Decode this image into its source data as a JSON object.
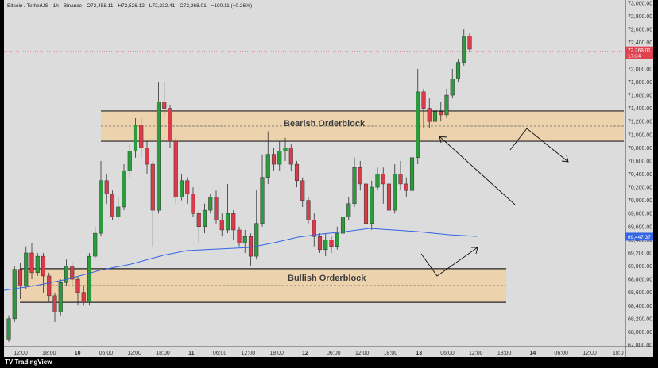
{
  "legend": {
    "symbol": "Bitcoin / TetherUS · 1h · Binance",
    "open": "O72,458.11",
    "high": "H72,526.12",
    "low": "L72,232.41",
    "close": "C72,268.01",
    "change": "−190.11 (−0.26%)"
  },
  "price_axis": {
    "labels": [
      "73,000.00",
      "72,800.00",
      "72,600.00",
      "72,400.00",
      "72,200.00",
      "72,000.00",
      "71,800.00",
      "71,600.00",
      "71,400.00",
      "71,200.00",
      "71,000.00",
      "70,800.00",
      "70,600.00",
      "70,400.00",
      "70,200.00",
      "70,000.00",
      "69,800.00",
      "69,600.00",
      "69,400.00",
      "69,200.00",
      "69,000.00",
      "68,800.00",
      "68,600.00",
      "68,400.00",
      "68,200.00",
      "68,000.00",
      "67,800.00"
    ],
    "current_price": "72,268.01",
    "countdown": "17:34",
    "ma_price": "69,447.37"
  },
  "time_axis": {
    "labels": [
      "12:00",
      "18:00",
      "10",
      "06:00",
      "12:00",
      "18:00",
      "11",
      "06:00",
      "12:00",
      "18:00",
      "12",
      "06:00",
      "12:00",
      "18:00",
      "13",
      "06:00",
      "12:00",
      "18:00",
      "14",
      "06:00",
      "12:00",
      "18:0"
    ]
  },
  "zones": {
    "bearish_label": "Bearish Orderblock",
    "bullish_label": "Bullish Orderblock"
  },
  "footer": {
    "text": "TV TradingView"
  },
  "colors": {
    "bg": "#dcdcdc",
    "up": "#2e9a3e",
    "down": "#d93b4a",
    "zone_fill": "#ecd3ad",
    "ma_line": "#3465e4",
    "price_tag": "#e0424f",
    "ma_tag": "#3465e4"
  },
  "chart_data": {
    "type": "candlestick",
    "interval": "1h",
    "ylim": [
      67800,
      73000
    ],
    "moving_average_last": 69447.37,
    "zones": [
      {
        "name": "Bearish Orderblock",
        "low": 70900,
        "high": 71360
      },
      {
        "name": "Bullish Orderblock",
        "low": 68450,
        "high": 68960
      }
    ],
    "candles": [
      [
        67880,
        68200,
        67850,
        68250
      ],
      [
        68200,
        68950,
        68150,
        69000
      ],
      [
        68950,
        68700,
        68500,
        69050
      ],
      [
        68700,
        69200,
        68650,
        69300
      ],
      [
        69200,
        68900,
        68800,
        69350
      ],
      [
        68900,
        69150,
        68850,
        69200
      ],
      [
        69150,
        68850,
        68600,
        69200
      ],
      [
        68850,
        68550,
        68450,
        68900
      ],
      [
        68550,
        68300,
        68150,
        68600
      ],
      [
        68300,
        68750,
        68250,
        68800
      ],
      [
        68750,
        69000,
        68700,
        69100
      ],
      [
        69000,
        68800,
        68700,
        69050
      ],
      [
        68800,
        68600,
        68400,
        68850
      ],
      [
        68600,
        68450,
        68400,
        68700
      ],
      [
        68450,
        69150,
        68400,
        69200
      ],
      [
        69150,
        69500,
        69100,
        69600
      ],
      [
        69500,
        70300,
        69450,
        70600
      ],
      [
        70300,
        70100,
        69950,
        70400
      ],
      [
        70100,
        69750,
        69700,
        70150
      ],
      [
        69750,
        69900,
        69700,
        70050
      ],
      [
        69900,
        70450,
        69850,
        70550
      ],
      [
        70450,
        70750,
        70350,
        70850
      ],
      [
        70750,
        71150,
        70650,
        71250
      ],
      [
        71150,
        70800,
        70650,
        71250
      ],
      [
        70800,
        70550,
        70400,
        70900
      ],
      [
        70550,
        69850,
        69300,
        70600
      ],
      [
        69850,
        71500,
        69800,
        71800
      ],
      [
        71500,
        71400,
        71300,
        71800
      ],
      [
        71400,
        70900,
        70800,
        71450
      ],
      [
        70900,
        70050,
        69950,
        70950
      ],
      [
        70050,
        70300,
        70000,
        70400
      ],
      [
        70300,
        70100,
        69950,
        70350
      ],
      [
        70100,
        69800,
        69750,
        70200
      ],
      [
        69800,
        69600,
        69350,
        69850
      ],
      [
        69600,
        69850,
        69500,
        69950
      ],
      [
        69850,
        70050,
        69800,
        70100
      ],
      [
        70050,
        69700,
        69650,
        70150
      ],
      [
        69700,
        69550,
        69450,
        69800
      ],
      [
        69550,
        69800,
        69500,
        70250
      ],
      [
        69800,
        69550,
        69400,
        69850
      ],
      [
        69550,
        69350,
        69300,
        69600
      ],
      [
        69350,
        69450,
        69200,
        69550
      ],
      [
        69450,
        69150,
        69000,
        69500
      ],
      [
        69150,
        69650,
        69100,
        70150
      ],
      [
        69650,
        70350,
        69600,
        70700
      ],
      [
        70350,
        70700,
        70250,
        71050
      ],
      [
        70700,
        70550,
        70450,
        70800
      ],
      [
        70550,
        70750,
        70450,
        70900
      ],
      [
        70750,
        70800,
        70600,
        70950
      ],
      [
        70800,
        70550,
        70450,
        70850
      ],
      [
        70550,
        70300,
        70200,
        70600
      ],
      [
        70300,
        70000,
        69900,
        70350
      ],
      [
        70000,
        69700,
        69650,
        70050
      ],
      [
        69700,
        69450,
        69300,
        69800
      ],
      [
        69450,
        69250,
        69200,
        69500
      ],
      [
        69250,
        69400,
        69150,
        69500
      ],
      [
        69400,
        69300,
        69200,
        69450
      ],
      [
        69300,
        69500,
        69250,
        69600
      ],
      [
        69500,
        69750,
        69450,
        69900
      ],
      [
        69750,
        69950,
        69700,
        70050
      ],
      [
        69950,
        70500,
        69900,
        70650
      ],
      [
        70500,
        70250,
        70150,
        70600
      ],
      [
        70250,
        69650,
        69550,
        70300
      ],
      [
        69650,
        70200,
        69550,
        70300
      ],
      [
        70200,
        70400,
        70150,
        70500
      ],
      [
        70400,
        70250,
        69950,
        70500
      ],
      [
        70250,
        69850,
        69800,
        70300
      ],
      [
        69850,
        70400,
        69800,
        70550
      ],
      [
        70400,
        70250,
        70150,
        70600
      ],
      [
        70250,
        70150,
        70050,
        70350
      ],
      [
        70150,
        70650,
        70100,
        70700
      ],
      [
        70650,
        71650,
        70550,
        72000
      ],
      [
        71650,
        71400,
        71100,
        71700
      ],
      [
        71400,
        71200,
        71100,
        71550
      ],
      [
        71200,
        71350,
        71000,
        71450
      ],
      [
        71350,
        71300,
        71200,
        71500
      ],
      [
        71300,
        71600,
        71250,
        71700
      ],
      [
        71600,
        71850,
        71550,
        72000
      ],
      [
        71850,
        72100,
        71800,
        72150
      ],
      [
        72100,
        72500,
        72050,
        72600
      ],
      [
        72500,
        72300,
        72250,
        72550
      ]
    ]
  }
}
